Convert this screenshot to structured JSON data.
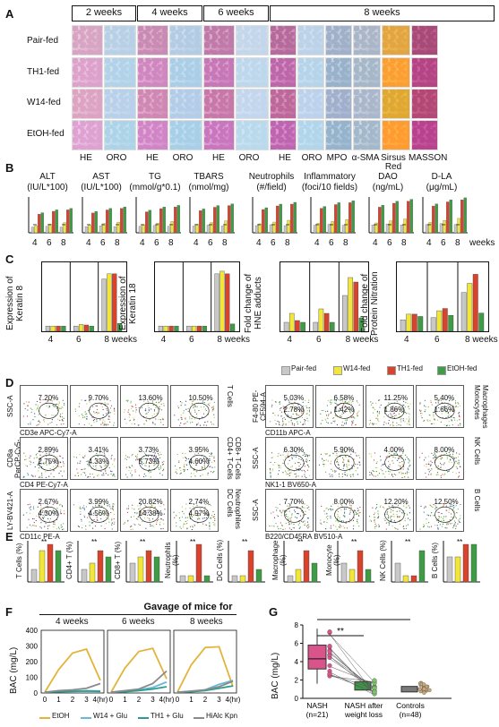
{
  "panel_letters": [
    "A",
    "B",
    "C",
    "D",
    "E",
    "F",
    "G"
  ],
  "panelA": {
    "time_headers": [
      "2 weeks",
      "4 weeks",
      "6 weeks",
      "8 weeks"
    ],
    "row_labels": [
      "Pair-fed",
      "TH1-fed",
      "W14-fed",
      "EtOH-fed"
    ],
    "col_labels": [
      "HE",
      "ORO",
      "HE",
      "ORO",
      "HE",
      "ORO",
      "HE",
      "ORO",
      "MPO",
      "α-SMA",
      "Sirsus Red",
      "MASSON"
    ]
  },
  "panelB": {
    "titles": [
      [
        "ALT",
        "(IU/L*100)"
      ],
      [
        "AST",
        "(IU/L*100)"
      ],
      [
        "TG",
        "(mmol/g*0.1)"
      ],
      [
        "TBARS",
        "(nmol/mg)"
      ],
      [
        "Neutrophils",
        "(#/field)"
      ],
      [
        "Inflammatory",
        "(foci/10 fields)"
      ],
      [
        "DAO",
        "(ng/mL)"
      ],
      [
        "D-LA",
        "(μg/mL)"
      ]
    ],
    "x_ticks": [
      "4",
      "6",
      "8"
    ],
    "x_suffix": "weeks"
  },
  "panelC": {
    "ylabels": [
      "Expression of Keratin 8",
      "Expression of Keratin 18",
      "Fold change of HNE adducts",
      "Fold change of Protein Nitration"
    ],
    "x_ticks": [
      "4",
      "6",
      "8 weeks"
    ],
    "legend": [
      "Pair-fed",
      "W14-fed",
      "TH1-fed",
      "EtOH-fed"
    ]
  },
  "colors": {
    "pair": "#c8c8c8",
    "w14": "#f2e63a",
    "th1": "#d9432b",
    "etoh": "#3f9b45",
    "gold": "#e2b43a",
    "teal": "#2a9d8f",
    "cyan": "#6bb7d6",
    "grey": "#8a8a8a",
    "pink": "#d9548a"
  },
  "panelD": {
    "left_rows": [
      {
        "axis_y": "SSC-A",
        "axis_x": "CD3e APC-Cy7-A",
        "side": "T Cells",
        "vals": [
          [
            "7.20%"
          ],
          [
            "9.70%"
          ],
          [
            "13.60%"
          ],
          [
            "10.50%"
          ]
        ]
      },
      {
        "axis_y": "CD8a PerCP-Cy5-5-A",
        "axis_x": "CD4 PE-Cy7-A",
        "side": "CD8+ T-Cells CD4+ T-Cells",
        "vals": [
          [
            "2.89%",
            "2.75%"
          ],
          [
            "3.41%",
            "4.33%"
          ],
          [
            "3.73%",
            "5.73%"
          ],
          [
            "3.95%",
            "4.60%"
          ]
        ]
      },
      {
        "axis_y": "LY-BV421-A",
        "axis_x": "CD11c PE-A",
        "side": "Neutrophiles DC Cells",
        "vals": [
          [
            "2.67%",
            "4.30%"
          ],
          [
            "3.99%",
            "4.56%"
          ],
          [
            "20.82%",
            "14.38%"
          ],
          [
            "2.74%",
            "4.97%"
          ]
        ]
      }
    ],
    "right_rows": [
      {
        "axis_y": "F4-80 PE-CF594-A",
        "axis_x": "CD11b APC-A",
        "side": "Macrophages Monocytes",
        "vals": [
          [
            "5.03%",
            "2.78%"
          ],
          [
            "6.58%",
            "1.42%"
          ],
          [
            "11.25%",
            "1.86%"
          ],
          [
            "5.40%",
            "1.66%"
          ]
        ]
      },
      {
        "axis_y": "SSC-A",
        "axis_x": "NK1-1 BV650-A",
        "side": "NK Cells",
        "vals": [
          [
            "6.30%"
          ],
          [
            "5.90%"
          ],
          [
            "4.00%"
          ],
          [
            "8.00%"
          ]
        ]
      },
      {
        "axis_y": "SSC-A",
        "axis_x": "B220/CD45RA BV510-A",
        "side": "B Cells",
        "vals": [
          [
            "7.70%"
          ],
          [
            "8.00%"
          ],
          [
            "12.20%"
          ],
          [
            "12.50%"
          ]
        ]
      }
    ]
  },
  "panelE": {
    "ylabels": [
      "T Cells (%)",
      "CD4+ T (%)",
      "CD8+ T (%)",
      "Neutrophils (%)",
      "DC Cells (%)",
      "Macrophage (%)",
      "Monocyte (%)",
      "NK Cells (%)",
      "B Cells (%)"
    ],
    "sig": "**"
  },
  "panelF": {
    "title": "Gavage of mice for",
    "weeks": [
      "4 weeks",
      "6 weeks",
      "8 weeks"
    ],
    "ylabel": "BAC (mg/L)",
    "yticks": [
      "0",
      "100",
      "200",
      "300",
      "400"
    ],
    "xticks": [
      "0",
      "1",
      "2",
      "3",
      "4(hr)"
    ],
    "legend": [
      "EtOH",
      "W14 + Glu",
      "TH1 + Glu",
      "HiAlc Kpn"
    ]
  },
  "panelG": {
    "ylabel": "BAC (mg/L)",
    "yticks": [
      "0",
      "2",
      "4",
      "6",
      "8"
    ],
    "groups": [
      "NASH\n(n=21)",
      "NASH after weight loss",
      "Controls\n(n=48)"
    ],
    "group_lines": [
      [
        "NASH",
        "(n=21)"
      ],
      [
        "NASH after",
        "weight loss"
      ],
      [
        "Controls",
        "(n=48)"
      ]
    ],
    "sig": "**"
  },
  "chart_data": [
    {
      "type": "line",
      "title": "Gavage of mice for — 4 weeks",
      "xlabel": "",
      "ylabel": "BAC (mg/L)",
      "x": [
        0,
        1,
        2,
        3,
        4
      ],
      "ylim": [
        0,
        400
      ],
      "series": [
        {
          "name": "EtOH",
          "values": [
            5,
            150,
            255,
            280,
            80
          ]
        },
        {
          "name": "W14 + Glu",
          "values": [
            5,
            10,
            12,
            15,
            12
          ]
        },
        {
          "name": "TH1 + Glu",
          "values": [
            5,
            8,
            10,
            12,
            10
          ]
        },
        {
          "name": "HiAlc Kpn",
          "values": [
            5,
            15,
            20,
            30,
            60
          ]
        }
      ]
    },
    {
      "type": "line",
      "title": "Gavage of mice for — 6 weeks",
      "xlabel": "",
      "ylabel": "BAC (mg/L)",
      "x": [
        0,
        1,
        2,
        3,
        4
      ],
      "ylim": [
        0,
        400
      ],
      "series": [
        {
          "name": "EtOH",
          "values": [
            5,
            160,
            265,
            285,
            90
          ]
        },
        {
          "name": "W14 + Glu",
          "values": [
            5,
            10,
            20,
            35,
            70
          ]
        },
        {
          "name": "TH1 + Glu",
          "values": [
            5,
            8,
            15,
            25,
            40
          ]
        },
        {
          "name": "HiAlc Kpn",
          "values": [
            5,
            15,
            25,
            60,
            140
          ]
        }
      ]
    },
    {
      "type": "line",
      "title": "Gavage of mice for — 8 weeks",
      "xlabel": "",
      "ylabel": "BAC (mg/L)",
      "x": [
        0,
        1,
        2,
        3,
        4
      ],
      "ylim": [
        0,
        400
      ],
      "series": [
        {
          "name": "EtOH",
          "values": [
            5,
            180,
            290,
            295,
            40
          ]
        },
        {
          "name": "W14 + Glu",
          "values": [
            5,
            10,
            20,
            55,
            80
          ]
        },
        {
          "name": "TH1 + Glu",
          "values": [
            5,
            8,
            15,
            30,
            45
          ]
        },
        {
          "name": "HiAlc Kpn",
          "values": [
            5,
            12,
            20,
            40,
            75
          ]
        }
      ]
    }
  ]
}
